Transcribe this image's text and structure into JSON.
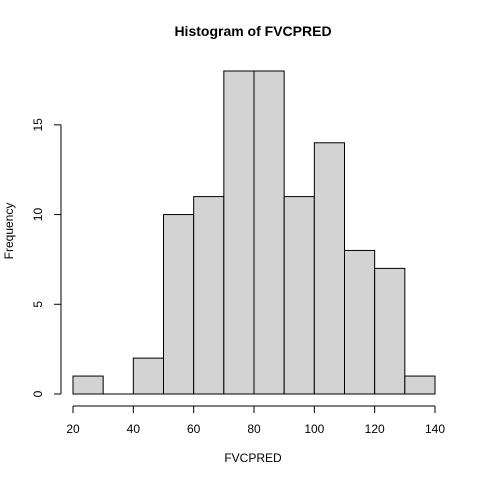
{
  "chart_data": {
    "type": "bar",
    "title": "Histogram of  FVCPRED",
    "xlabel": "FVCPRED",
    "ylabel": "Frequency",
    "bins": [
      {
        "start": 20,
        "end": 30,
        "count": 1
      },
      {
        "start": 30,
        "end": 40,
        "count": 0
      },
      {
        "start": 40,
        "end": 50,
        "count": 2
      },
      {
        "start": 50,
        "end": 60,
        "count": 10
      },
      {
        "start": 60,
        "end": 70,
        "count": 11
      },
      {
        "start": 70,
        "end": 80,
        "count": 18
      },
      {
        "start": 80,
        "end": 90,
        "count": 18
      },
      {
        "start": 90,
        "end": 100,
        "count": 11
      },
      {
        "start": 100,
        "end": 110,
        "count": 14
      },
      {
        "start": 110,
        "end": 120,
        "count": 8
      },
      {
        "start": 120,
        "end": 130,
        "count": 7
      },
      {
        "start": 130,
        "end": 140,
        "count": 1
      }
    ],
    "xlim": [
      20,
      140
    ],
    "ylim": [
      0,
      18
    ],
    "x_ticks": [
      20,
      40,
      60,
      80,
      100,
      120,
      140
    ],
    "y_ticks": [
      0,
      5,
      10,
      15
    ],
    "bar_color": "#d3d3d3",
    "grid": false,
    "legend": "none"
  }
}
